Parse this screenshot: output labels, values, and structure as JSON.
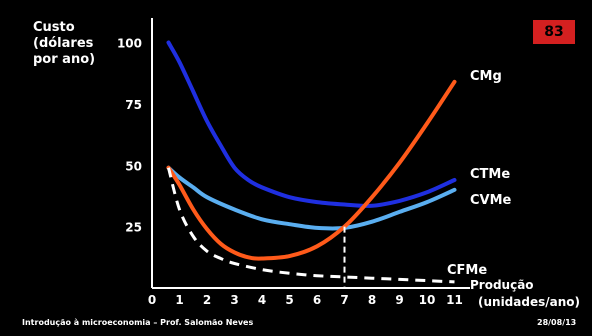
{
  "slide": {
    "page_badge": "83",
    "footer_left": "Introdução à microeconomia – Prof. Salomão Neves",
    "footer_right": "28/08/13",
    "badge_color": "#d42020",
    "background": "#000000"
  },
  "chart_data": {
    "type": "line",
    "title": "",
    "ylabel_lines": [
      "Custo",
      "(dólares",
      "por ano)"
    ],
    "xlabel_lines": [
      "Produção",
      "(unidades/ano)"
    ],
    "xlim": [
      0,
      12
    ],
    "ylim": [
      0,
      110
    ],
    "xticks": [
      "0",
      "1",
      "2",
      "3",
      "4",
      "5",
      "6",
      "7",
      "8",
      "9",
      "10",
      "11"
    ],
    "yticks": [
      "25",
      "50",
      "75",
      "100"
    ],
    "xtick_values": [
      0,
      1,
      2,
      3,
      4,
      5,
      6,
      7,
      8,
      9,
      10,
      11
    ],
    "ytick_values": [
      25,
      50,
      75,
      100
    ],
    "reference_x": 7,
    "reference_y": 25,
    "series": [
      {
        "name": "CTMe",
        "color": "#1f2fe0",
        "dashed": false,
        "x": [
          0.6,
          1.0,
          1.5,
          2.0,
          2.5,
          3.0,
          3.5,
          4.0,
          5.0,
          6.0,
          7.0,
          8.0,
          9.0,
          10.0,
          11.0
        ],
        "y": [
          100,
          92,
          80,
          68,
          58,
          49,
          44,
          41,
          37,
          35,
          34,
          33.5,
          35.5,
          39,
          44
        ]
      },
      {
        "name": "CVMe",
        "color": "#5aaef0",
        "dashed": false,
        "x": [
          0.6,
          1.0,
          1.5,
          2.0,
          3.0,
          4.0,
          5.0,
          6.0,
          7.0,
          8.0,
          9.0,
          10.0,
          11.0
        ],
        "y": [
          49,
          45,
          41,
          37,
          32,
          28,
          26,
          24.5,
          24.5,
          27,
          31,
          35,
          40
        ]
      },
      {
        "name": "CMg",
        "color": "#ff5a1a",
        "dashed": false,
        "x": [
          0.6,
          1.0,
          1.5,
          2.0,
          2.5,
          3.0,
          3.5,
          4.0,
          5.0,
          6.0,
          7.0,
          8.0,
          9.0,
          10.0,
          11.0
        ],
        "y": [
          49,
          42,
          32,
          24,
          18,
          14.5,
          12.5,
          12,
          13,
          17,
          25,
          37,
          51,
          67,
          84
        ]
      },
      {
        "name": "CFMe",
        "color": "#ffffff",
        "dashed": true,
        "x": [
          0.6,
          1.0,
          1.5,
          2.0,
          2.5,
          3.0,
          4.0,
          5.0,
          6.0,
          7.0,
          8.0,
          9.0,
          10.0,
          11.0
        ],
        "y": [
          49,
          32,
          21,
          15,
          12,
          10,
          7.5,
          6,
          5,
          4.5,
          4,
          3.5,
          3,
          2.5
        ]
      }
    ],
    "series_labels": [
      "CMg",
      "CTMe",
      "CVMe",
      "CFMe"
    ]
  }
}
